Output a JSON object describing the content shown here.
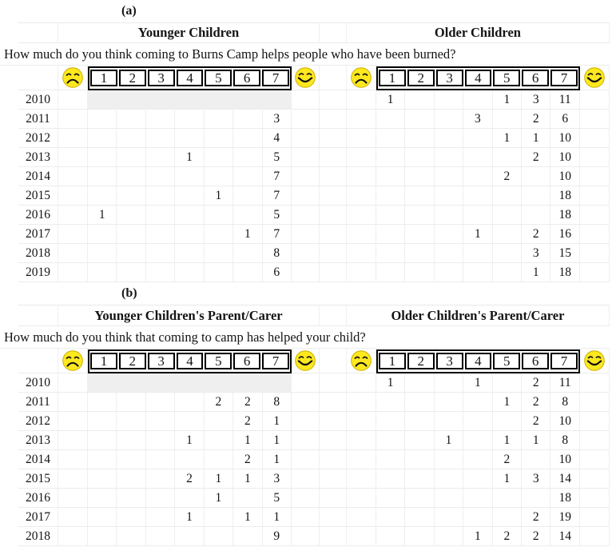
{
  "figure": {
    "panel_a": {
      "label": "(a)",
      "left_header": "Younger Children",
      "right_header": "Older Children",
      "question": "How much do you think coming to Burns Camp helps people who have been burned?",
      "scale_labels": [
        "1",
        "2",
        "3",
        "4",
        "5",
        "6",
        "7"
      ],
      "sad_icon": "sad-face",
      "happy_icon": "happy-face",
      "years": [
        "2010",
        "2011",
        "2012",
        "2013",
        "2014",
        "2015",
        "2016",
        "2017",
        "2018",
        "2019"
      ],
      "left_rows": [
        {
          "shaded": true,
          "values": [
            "",
            "",
            "",
            "",
            "",
            "",
            ""
          ]
        },
        {
          "shaded": false,
          "values": [
            "",
            "",
            "",
            "",
            "",
            "",
            "3"
          ]
        },
        {
          "shaded": false,
          "values": [
            "",
            "",
            "",
            "",
            "",
            "",
            "4"
          ]
        },
        {
          "shaded": false,
          "values": [
            "",
            "",
            "",
            "1",
            "",
            "",
            "5"
          ]
        },
        {
          "shaded": false,
          "values": [
            "",
            "",
            "",
            "",
            "",
            "",
            "7"
          ]
        },
        {
          "shaded": false,
          "values": [
            "",
            "",
            "",
            "",
            "1",
            "",
            "7"
          ]
        },
        {
          "shaded": false,
          "values": [
            "1",
            "",
            "",
            "",
            "",
            "",
            "5"
          ]
        },
        {
          "shaded": false,
          "values": [
            "",
            "",
            "",
            "",
            "",
            "1",
            "7"
          ]
        },
        {
          "shaded": false,
          "values": [
            "",
            "",
            "",
            "",
            "",
            "",
            "8"
          ]
        },
        {
          "shaded": false,
          "values": [
            "",
            "",
            "",
            "",
            "",
            "",
            "6"
          ]
        }
      ],
      "right_rows": [
        {
          "shaded": false,
          "values": [
            "1",
            "",
            "",
            "",
            "1",
            "3",
            "11"
          ]
        },
        {
          "shaded": false,
          "values": [
            "",
            "",
            "",
            "3",
            "",
            "2",
            "6"
          ]
        },
        {
          "shaded": false,
          "values": [
            "",
            "",
            "",
            "",
            "1",
            "1",
            "10"
          ]
        },
        {
          "shaded": false,
          "values": [
            "",
            "",
            "",
            "",
            "",
            "2",
            "10"
          ]
        },
        {
          "shaded": false,
          "values": [
            "",
            "",
            "",
            "",
            "2",
            "",
            "10"
          ]
        },
        {
          "shaded": false,
          "values": [
            "",
            "",
            "",
            "",
            "",
            "",
            "18"
          ]
        },
        {
          "shaded": false,
          "values": [
            "",
            "",
            "",
            "",
            "",
            "",
            "18"
          ]
        },
        {
          "shaded": false,
          "values": [
            "",
            "",
            "",
            "1",
            "",
            "2",
            "16"
          ]
        },
        {
          "shaded": false,
          "values": [
            "",
            "",
            "",
            "",
            "",
            "3",
            "15"
          ]
        },
        {
          "shaded": false,
          "values": [
            "",
            "",
            "",
            "",
            "",
            "1",
            "18"
          ]
        }
      ]
    },
    "panel_b": {
      "label": "(b)",
      "left_header": "Younger Children's Parent/Carer",
      "right_header": "Older Children's Parent/Carer",
      "question": "How much do you think that coming to camp has helped your child?",
      "scale_labels": [
        "1",
        "2",
        "3",
        "4",
        "5",
        "6",
        "7"
      ],
      "sad_icon": "sad-face",
      "happy_icon": "happy-face",
      "years": [
        "2010",
        "2011",
        "2012",
        "2013",
        "2014",
        "2015",
        "2016",
        "2017",
        "2018"
      ],
      "left_rows": [
        {
          "shaded": true,
          "values": [
            "",
            "",
            "",
            "",
            "",
            "",
            ""
          ]
        },
        {
          "shaded": false,
          "values": [
            "",
            "",
            "",
            "",
            "2",
            "2",
            "8"
          ]
        },
        {
          "shaded": false,
          "values": [
            "",
            "",
            "",
            "",
            "",
            "2",
            "1"
          ]
        },
        {
          "shaded": false,
          "values": [
            "",
            "",
            "",
            "1",
            "",
            "1",
            "1"
          ]
        },
        {
          "shaded": false,
          "values": [
            "",
            "",
            "",
            "",
            "",
            "2",
            "1"
          ]
        },
        {
          "shaded": false,
          "values": [
            "",
            "",
            "",
            "2",
            "1",
            "1",
            "3"
          ]
        },
        {
          "shaded": false,
          "values": [
            "",
            "",
            "",
            "",
            "1",
            "",
            "5"
          ]
        },
        {
          "shaded": false,
          "values": [
            "",
            "",
            "",
            "1",
            "",
            "1",
            "1"
          ]
        },
        {
          "shaded": false,
          "values": [
            "",
            "",
            "",
            "",
            "",
            "",
            "9"
          ]
        }
      ],
      "right_rows": [
        {
          "shaded": false,
          "values": [
            "1",
            "",
            "",
            "1",
            "",
            "2",
            "11"
          ]
        },
        {
          "shaded": false,
          "values": [
            "",
            "",
            "",
            "",
            "1",
            "2",
            "8"
          ]
        },
        {
          "shaded": false,
          "values": [
            "",
            "",
            "",
            "",
            "",
            "2",
            "10"
          ]
        },
        {
          "shaded": false,
          "values": [
            "",
            "",
            "1",
            "",
            "1",
            "1",
            "8"
          ]
        },
        {
          "shaded": false,
          "values": [
            "",
            "",
            "",
            "",
            "2",
            "",
            "10"
          ]
        },
        {
          "shaded": false,
          "values": [
            "",
            "",
            "",
            "",
            "1",
            "3",
            "14"
          ]
        },
        {
          "shaded": false,
          "values": [
            "",
            "",
            "",
            "",
            "",
            "",
            "18"
          ]
        },
        {
          "shaded": false,
          "values": [
            "",
            "",
            "",
            "",
            "",
            "2",
            "19"
          ]
        },
        {
          "shaded": false,
          "values": [
            "",
            "",
            "",
            "1",
            "2",
            "2",
            "14"
          ]
        }
      ]
    },
    "colors": {
      "emoji_yellow": "#FFE81E",
      "shaded_row": "#efefef",
      "gridline": "#ececec",
      "scale_box_border": "#000000"
    }
  }
}
